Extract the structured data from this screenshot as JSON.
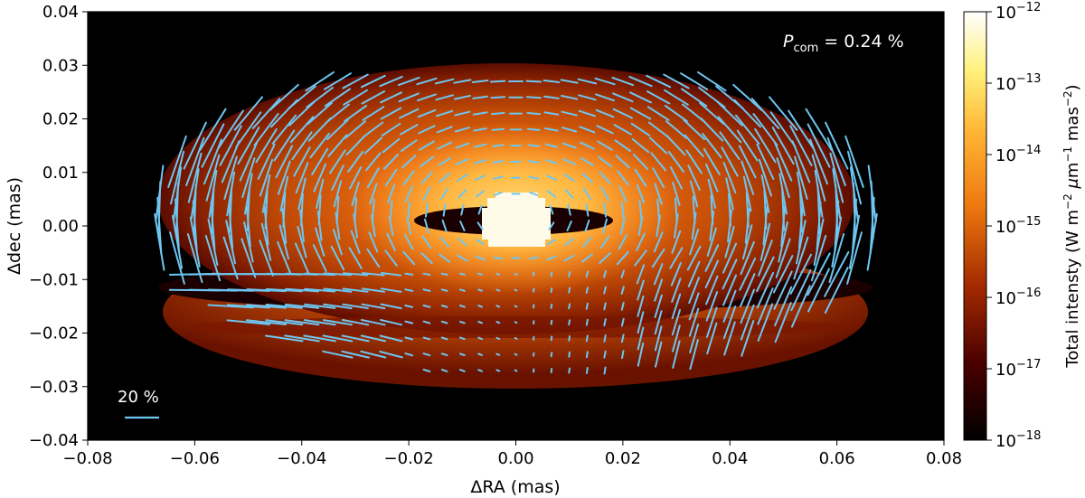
{
  "chart_data": {
    "type": "heatmap",
    "title": "",
    "xlabel": "ΔRA (mas)",
    "ylabel": "Δdec (mas)",
    "xlim": [
      -0.08,
      0.08
    ],
    "ylim": [
      -0.04,
      0.04
    ],
    "x_ticks": [
      -0.08,
      -0.06,
      -0.04,
      -0.02,
      0.0,
      0.02,
      0.04,
      0.06,
      0.08
    ],
    "x_tick_labels": [
      "−0.08",
      "−0.06",
      "−0.04",
      "−0.02",
      "0.00",
      "0.02",
      "0.04",
      "0.06",
      "0.08"
    ],
    "y_ticks": [
      -0.04,
      -0.03,
      -0.02,
      -0.01,
      0.0,
      0.01,
      0.02,
      0.03,
      0.04
    ],
    "y_tick_labels": [
      "−0.04",
      "−0.03",
      "−0.02",
      "−0.01",
      "0.00",
      "0.01",
      "0.02",
      "0.03",
      "0.04"
    ],
    "colorbar": {
      "label": "Total intensty (W m⁻² μm⁻¹ mas⁻²)",
      "scale": "log",
      "range": [
        1e-18,
        1e-12
      ],
      "ticks": [
        {
          "base": "10",
          "exp": "−18",
          "value": 1e-18
        },
        {
          "base": "10",
          "exp": "−17",
          "value": 1e-17
        },
        {
          "base": "10",
          "exp": "−16",
          "value": 1e-16
        },
        {
          "base": "10",
          "exp": "−15",
          "value": 1e-15
        },
        {
          "base": "10",
          "exp": "−14",
          "value": 1e-14
        },
        {
          "base": "10",
          "exp": "−13",
          "value": 1e-13
        },
        {
          "base": "10",
          "exp": "−12",
          "value": 1e-12
        }
      ],
      "colormap": "afmhot"
    },
    "annotations": {
      "pcom_symbol": "P",
      "pcom_subscript": "com",
      "pcom_value": " = 0.24 %",
      "scale_label": "20 %",
      "scale_value_percent": 20
    },
    "vector_color": "#6ec6f0",
    "polarization_grid": {
      "x_step_mas": 0.00333,
      "y_step_mas": 0.003,
      "description_values": "vectors tangential around disk center, length proportional to polarization fraction"
    }
  }
}
